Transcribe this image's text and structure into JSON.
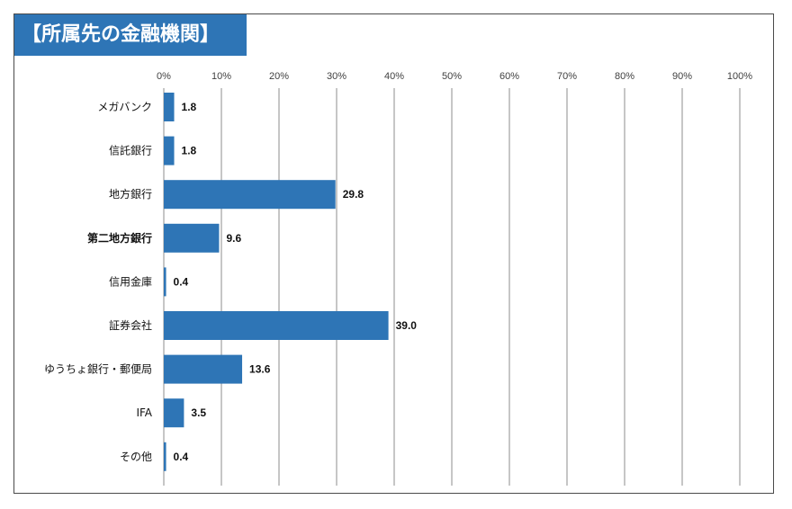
{
  "chart_data": {
    "type": "bar",
    "orientation": "horizontal",
    "title": "【所属先の金融機関】",
    "categories": [
      "メガバンク",
      "信託銀行",
      "地方銀行",
      "第二地方銀行",
      "信用金庫",
      "証券会社",
      "ゆうちょ銀行・郵便局",
      "IFA",
      "その他"
    ],
    "values": [
      1.8,
      1.8,
      29.8,
      9.6,
      0.4,
      39.0,
      13.6,
      3.5,
      0.4
    ],
    "value_labels": [
      "1.8",
      "1.8",
      "29.8",
      "9.6",
      "0.4",
      "39.0",
      "13.6",
      "3.5",
      "0.4"
    ],
    "xlim": [
      0,
      100
    ],
    "xticks": [
      "0%",
      "10%",
      "20%",
      "30%",
      "40%",
      "50%",
      "60%",
      "70%",
      "80%",
      "90%",
      "100%"
    ],
    "grid": true,
    "xaxis_position": "top",
    "bar_color": "#2e75b6"
  },
  "colors": {
    "title_bg": "#2e75b6",
    "title_text": "#ffffff",
    "grid": "#8c8c8c"
  }
}
